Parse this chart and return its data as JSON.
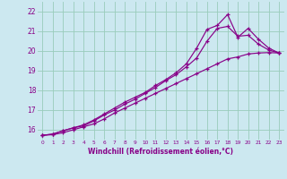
{
  "xlabel": "Windchill (Refroidissement éolien,°C)",
  "background_color": "#cce8f0",
  "grid_color": "#99ccbb",
  "line_color": "#880088",
  "xlim": [
    -0.5,
    23.5
  ],
  "ylim": [
    15.5,
    22.5
  ],
  "xticks": [
    0,
    1,
    2,
    3,
    4,
    5,
    6,
    7,
    8,
    9,
    10,
    11,
    12,
    13,
    14,
    15,
    16,
    17,
    18,
    19,
    20,
    21,
    22,
    23
  ],
  "yticks": [
    16,
    17,
    18,
    19,
    20,
    21,
    22
  ],
  "line1_x": [
    0,
    1,
    2,
    3,
    4,
    5,
    6,
    7,
    8,
    9,
    10,
    11,
    12,
    13,
    14,
    15,
    16,
    17,
    18,
    19,
    20,
    21,
    22,
    23
  ],
  "line1_y": [
    15.72,
    15.75,
    15.85,
    16.0,
    16.15,
    16.3,
    16.55,
    16.85,
    17.1,
    17.35,
    17.6,
    17.85,
    18.1,
    18.35,
    18.6,
    18.85,
    19.1,
    19.35,
    19.6,
    19.7,
    19.85,
    19.9,
    19.92,
    19.9
  ],
  "line2_x": [
    0,
    1,
    2,
    3,
    4,
    5,
    6,
    7,
    8,
    9,
    10,
    11,
    12,
    13,
    14,
    15,
    16,
    17,
    18,
    19,
    20,
    21,
    22,
    23
  ],
  "line2_y": [
    15.72,
    15.78,
    15.95,
    16.1,
    16.2,
    16.45,
    16.75,
    17.0,
    17.3,
    17.55,
    17.85,
    18.15,
    18.5,
    18.8,
    19.2,
    19.65,
    20.5,
    21.15,
    21.25,
    20.75,
    20.8,
    20.35,
    20.05,
    19.9
  ],
  "line3_x": [
    0,
    1,
    2,
    3,
    4,
    5,
    6,
    7,
    8,
    9,
    10,
    11,
    12,
    13,
    14,
    15,
    16,
    17,
    18,
    19,
    20,
    21,
    22,
    23
  ],
  "line3_y": [
    15.72,
    15.78,
    15.95,
    16.1,
    16.25,
    16.5,
    16.8,
    17.1,
    17.4,
    17.65,
    17.9,
    18.25,
    18.55,
    18.9,
    19.35,
    20.15,
    21.1,
    21.3,
    21.85,
    20.7,
    21.15,
    20.6,
    20.15,
    19.9
  ]
}
